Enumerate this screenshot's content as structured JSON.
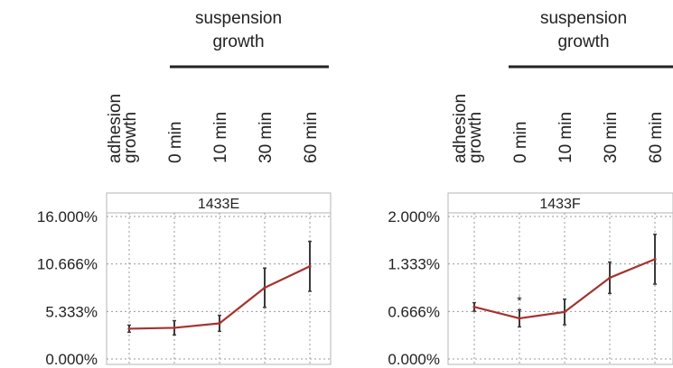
{
  "colors": {
    "line": "#a5332e",
    "errorbar": "#3a3a3a",
    "grid": "#9a9a9a",
    "frame": "#b5b5b5",
    "bracket": "#222222"
  },
  "header": {
    "group_label_line1": "suspension",
    "group_label_line2": "growth",
    "conditions": [
      "adhesion growth",
      "0 min",
      "10 min",
      "30 min",
      "60 min"
    ]
  },
  "chart_data": [
    {
      "type": "line",
      "title": "1433E",
      "categories": [
        "adhesion growth",
        "0 min",
        "10 min",
        "30 min",
        "60 min"
      ],
      "yticks": [
        "0.000%",
        "5.333%",
        "10.666%",
        "16.000%"
      ],
      "ylim": [
        0,
        16.0
      ],
      "grid": true,
      "series": [
        {
          "values": [
            3.4,
            3.5,
            4.0,
            8.0,
            10.4
          ],
          "error": [
            0.4,
            0.8,
            0.9,
            2.2,
            2.8
          ]
        }
      ]
    },
    {
      "type": "line",
      "title": "1433F",
      "categories": [
        "adhesion growth",
        "0 min",
        "10 min",
        "30 min",
        "60 min"
      ],
      "yticks": [
        "0.000%",
        "0.666%",
        "1.333%",
        "2.000%"
      ],
      "ylim": [
        0,
        2.0
      ],
      "grid": true,
      "series": [
        {
          "values": [
            0.73,
            0.57,
            0.66,
            1.14,
            1.4
          ],
          "error": [
            0.06,
            0.12,
            0.18,
            0.22,
            0.35
          ]
        }
      ],
      "annotations": [
        "*"
      ]
    }
  ]
}
